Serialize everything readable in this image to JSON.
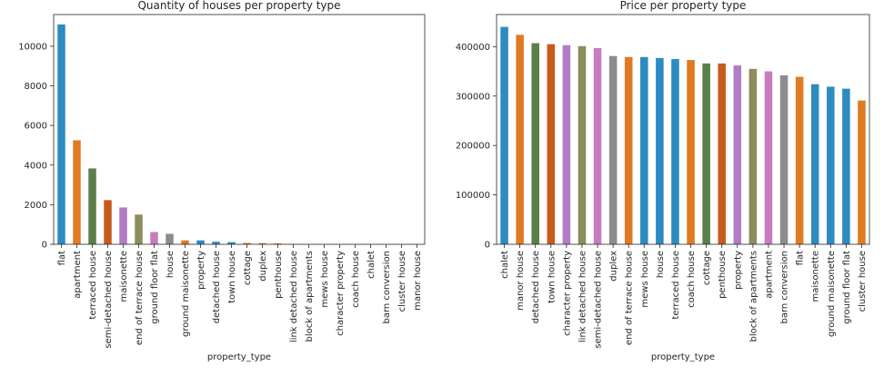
{
  "palette": [
    "#2e8bc0",
    "#e07b23",
    "#5a7f48",
    "#c75b1e",
    "#b07cc6",
    "#8c8c5c",
    "#c77cc0",
    "#8c8c8c"
  ],
  "chart_data": [
    {
      "type": "bar",
      "title": "Quantity of houses per property type",
      "xlabel": "property_type",
      "ylabel": "",
      "ylim": [
        0,
        11600
      ],
      "yticks": [
        0,
        2000,
        4000,
        6000,
        8000,
        10000
      ],
      "categories": [
        "flat",
        "apartment",
        "terraced house",
        "semi-detached house",
        "maisonette",
        "end of terrace house",
        "ground floor flat",
        "house",
        "ground maisonette",
        "property",
        "detached house",
        "town house",
        "cottage",
        "duplex",
        "penthouse",
        "link detached house",
        "block of apartments",
        "mews house",
        "character property",
        "coach house",
        "chalet",
        "barn conversion",
        "cluster house",
        "manor house"
      ],
      "values": [
        11100,
        5250,
        3830,
        2230,
        1860,
        1500,
        620,
        530,
        200,
        200,
        130,
        110,
        70,
        60,
        45,
        15,
        10,
        8,
        8,
        6,
        5,
        5,
        4,
        3
      ],
      "colors": [
        "#2e8bc0",
        "#e07b23",
        "#5a7f48",
        "#c75b1e",
        "#b07cc6",
        "#8c8c5c",
        "#c77cc0",
        "#8c8c8c",
        "#e07b23",
        "#2e8bc0",
        "#2e8bc0",
        "#2e8bc0",
        "#e07b23",
        "#e07b23",
        "#e07b23",
        "#8c8c8c",
        "#8c8c8c",
        "#8c8c8c",
        "#8c8c8c",
        "#8c8c8c",
        "#8c8c8c",
        "#8c8c8c",
        "#8c8c8c",
        "#8c8c8c"
      ]
    },
    {
      "type": "bar",
      "title": "Price per property type",
      "xlabel": "property_type",
      "ylabel": "",
      "ylim": [
        0,
        465000
      ],
      "yticks": [
        0,
        100000,
        200000,
        300000,
        400000
      ],
      "categories": [
        "chalet",
        "manor house",
        "detached house",
        "town house",
        "character property",
        "link detached house",
        "semi-detached house",
        "duplex",
        "end of terrace house",
        "mews house",
        "house",
        "terraced house",
        "coach house",
        "cottage",
        "penthouse",
        "property",
        "block of apartments",
        "apartment",
        "barn conversion",
        "flat",
        "maisonette",
        "ground maisonette",
        "ground floor flat",
        "cluster house"
      ],
      "values": [
        440000,
        424000,
        407000,
        405000,
        403000,
        401000,
        397000,
        381000,
        379000,
        379000,
        377000,
        375000,
        373000,
        366000,
        366000,
        362000,
        355000,
        350000,
        342000,
        339000,
        324000,
        319000,
        315000,
        291000
      ],
      "colors": [
        "#2e8bc0",
        "#e07b23",
        "#5a7f48",
        "#c75b1e",
        "#b07cc6",
        "#8c8c5c",
        "#c77cc0",
        "#8c8c8c",
        "#e07b23",
        "#2e8bc0",
        "#2e8bc0",
        "#2e8bc0",
        "#e07b23",
        "#5a7f48",
        "#c75b1e",
        "#b07cc6",
        "#8c8c5c",
        "#c77cc0",
        "#8c8c8c",
        "#e07b23",
        "#2e8bc0",
        "#2e8bc0",
        "#2e8bc0",
        "#e07b23"
      ]
    }
  ]
}
